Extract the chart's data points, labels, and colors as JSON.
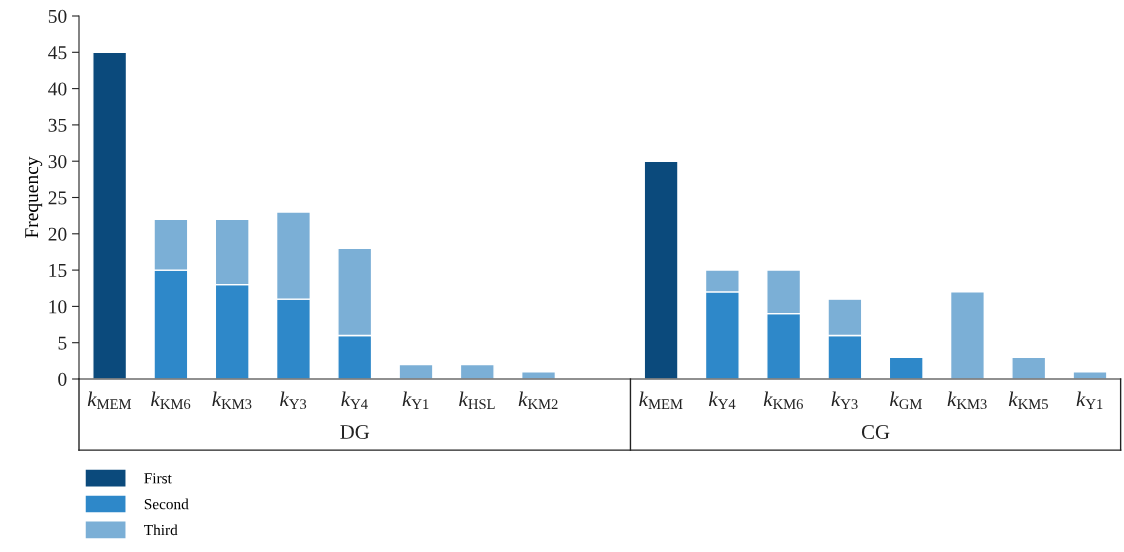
{
  "chart_data": {
    "type": "bar",
    "stacked": true,
    "ylabel": "Frequency",
    "categories": [
      "k$_{MEM}$",
      "k$_{KM6}$",
      "k$_{KM3}$",
      "k$_{Y3}$",
      "k$_{Y4}$",
      "k$_{Y1}$",
      "k$_{HSL}$",
      "k$_{KM2}$",
      null,
      "k$_{MEM}$",
      "k$_{Y4}$",
      "k$_{KM6}$",
      "k$_{Y3}$",
      "k$_{GM}$",
      "k$_{KM3}$",
      "k$_{KM5}$",
      "k$_{Y1}$"
    ],
    "series": [
      {
        "name": "First",
        "color": "#0b4a7c",
        "values": [
          45,
          null,
          null,
          null,
          null,
          null,
          null,
          null,
          null,
          30,
          null,
          null,
          null,
          null,
          null,
          null,
          null
        ]
      },
      {
        "name": "Second",
        "color": "#2e88c9",
        "values": [
          null,
          15,
          13,
          11,
          6,
          null,
          null,
          null,
          null,
          null,
          12,
          9,
          6,
          3,
          null,
          null,
          null
        ]
      },
      {
        "name": "Third",
        "color": "#7bafd6",
        "values": [
          null,
          7,
          9,
          12,
          12,
          2,
          2,
          1,
          null,
          null,
          3,
          6,
          5,
          null,
          12,
          3,
          1
        ]
      }
    ],
    "annotations": [
      "DG",
      "CG"
    ],
    "ylim": [
      0,
      50
    ],
    "yticks": [
      0,
      5,
      10,
      15,
      20,
      25,
      30,
      35,
      40,
      45,
      50
    ],
    "grid": false,
    "legend": "bottom left"
  }
}
